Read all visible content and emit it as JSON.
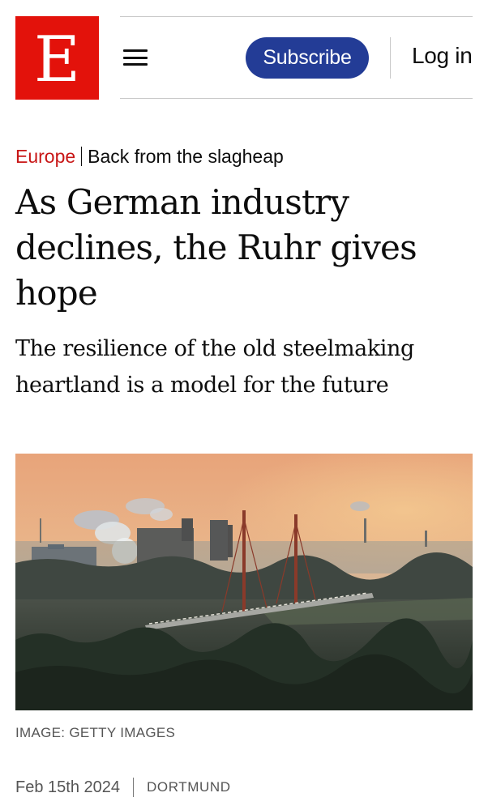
{
  "header": {
    "logo_letter": "E",
    "subscribe_label": "Subscribe",
    "login_label": "Log in",
    "menu_icon": "hamburger-menu-icon",
    "brand_color": "#e3120b",
    "subscribe_color": "#233c96"
  },
  "article": {
    "section": "Europe",
    "flytitle": "Back from the slagheap",
    "headline": "As German industry declines, the Ruhr gives hope",
    "standfirst": "The resilience of the old steelmaking heartland is a model for the future",
    "image_caption": "IMAGE: GETTY IMAGES",
    "date": "Feb 15th 2024",
    "dateline": "DORTMUND",
    "section_color": "#c81616"
  }
}
